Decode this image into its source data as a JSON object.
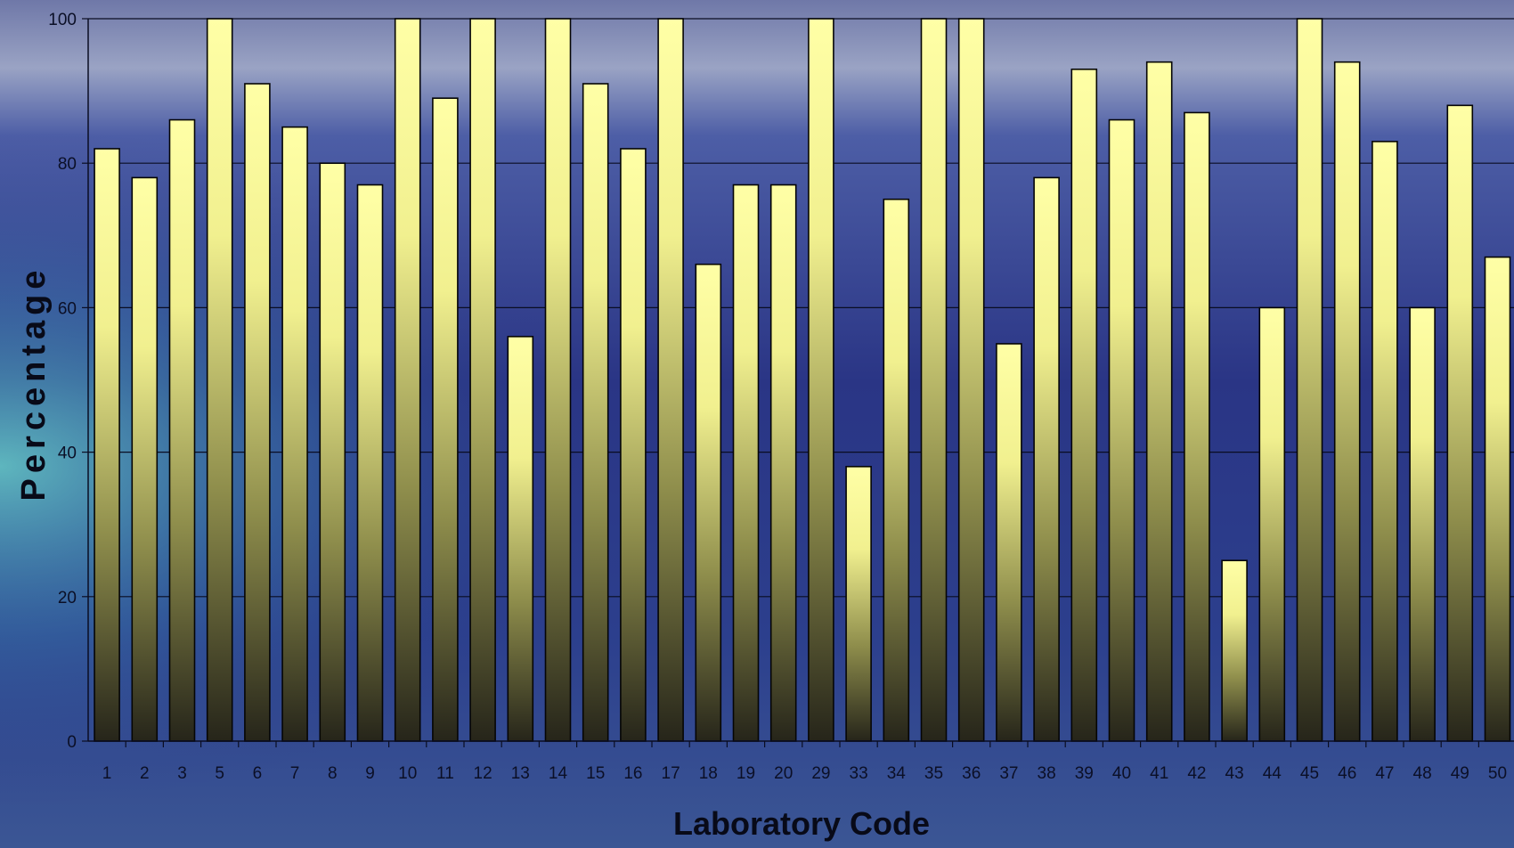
{
  "chart_data": {
    "type": "bar",
    "xlabel": "Laboratory Code",
    "ylabel": "Percentage",
    "ylim": [
      0,
      100
    ],
    "yticks": [
      0,
      20,
      40,
      60,
      80,
      100
    ],
    "grid": true,
    "categories": [
      "1",
      "2",
      "3",
      "5",
      "6",
      "7",
      "8",
      "9",
      "10",
      "11",
      "12",
      "13",
      "14",
      "15",
      "16",
      "17",
      "18",
      "19",
      "20",
      "29",
      "33",
      "34",
      "35",
      "36",
      "37",
      "38",
      "39",
      "40",
      "41",
      "42",
      "43",
      "44",
      "45",
      "46",
      "47",
      "48",
      "49",
      "50"
    ],
    "values": [
      82,
      78,
      86,
      100,
      91,
      85,
      80,
      77,
      100,
      89,
      100,
      56,
      100,
      91,
      82,
      100,
      66,
      77,
      77,
      100,
      38,
      75,
      100,
      100,
      55,
      78,
      93,
      86,
      94,
      87,
      25,
      60,
      100,
      94,
      83,
      60,
      88,
      67
    ]
  }
}
